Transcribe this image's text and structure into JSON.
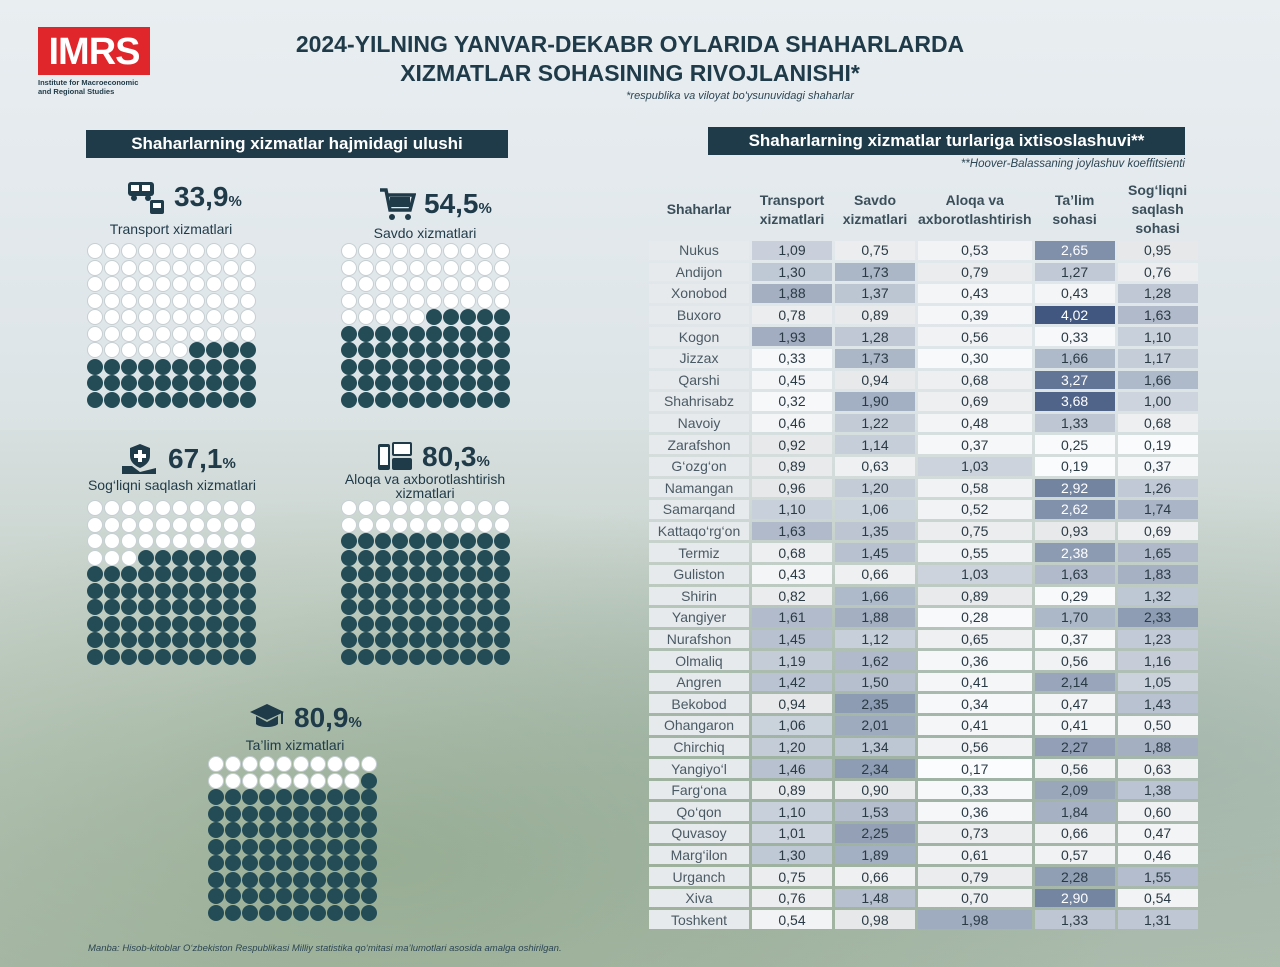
{
  "logo": {
    "text": "IMRS",
    "subtitle": "Institute for Macroeconomic and Regional Studies"
  },
  "title": {
    "line1": "2024-YILNING YANVAR-DEKABR OYLARIDA SHAHARLARDA",
    "line2": "XIZMATLAR SOHASINING RIVOJLANISHI*"
  },
  "title_note": "*respublika va viloyat bo'ysunuvidagi shaharlar",
  "left_banner": "Shaharlarning xizmatlar hajmidagi ulushi",
  "right_banner": "Shaharlarning xizmatlar turlariga ixtisoslashuvi**",
  "right_note": "**Hoover-Balassaning joylashuv koeffitsienti",
  "shares": [
    {
      "icon": "transport-icon",
      "value": "33,9",
      "unit": "%",
      "label": "Transport xizmatlari",
      "fraction": 0.339
    },
    {
      "icon": "cart-icon",
      "value": "54,5",
      "unit": "%",
      "label": "Savdo xizmatlari",
      "fraction": 0.545
    },
    {
      "icon": "healthcare-icon",
      "value": "67,1",
      "unit": "%",
      "label": "Sog‘liqni saqlash xizmatlari",
      "fraction": 0.671
    },
    {
      "icon": "communication-icon",
      "value": "80,3",
      "unit": "%",
      "label": "Aloqa va axborotlashtirish xizmatlari",
      "fraction": 0.803
    },
    {
      "icon": "graduation-cap-icon",
      "value": "80,9",
      "unit": "%",
      "label": "Ta’lim xizmatlari",
      "fraction": 0.809
    }
  ],
  "table": {
    "headers": [
      "Shaharlar",
      "Transport xizmatlari",
      "Savdo xizmatlari",
      "Aloqa va axborotlashtirish",
      "Ta’lim sohasi",
      "Sog‘liqni saqlash sohasi"
    ],
    "rows": [
      [
        "Nukus",
        "1,09",
        "0,75",
        "0,53",
        "2,65",
        "0,95"
      ],
      [
        "Andijon",
        "1,30",
        "1,73",
        "0,79",
        "1,27",
        "0,76"
      ],
      [
        "Xonobod",
        "1,88",
        "1,37",
        "0,43",
        "0,43",
        "1,28"
      ],
      [
        "Buxoro",
        "0,78",
        "0,89",
        "0,39",
        "4,02",
        "1,63"
      ],
      [
        "Kogon",
        "1,93",
        "1,28",
        "0,56",
        "0,33",
        "1,10"
      ],
      [
        "Jizzax",
        "0,33",
        "1,73",
        "0,30",
        "1,66",
        "1,17"
      ],
      [
        "Qarshi",
        "0,45",
        "0,94",
        "0,68",
        "3,27",
        "1,66"
      ],
      [
        "Shahrisabz",
        "0,32",
        "1,90",
        "0,69",
        "3,68",
        "1,00"
      ],
      [
        "Navoiy",
        "0,46",
        "1,22",
        "0,48",
        "1,33",
        "0,68"
      ],
      [
        "Zarafshon",
        "0,92",
        "1,14",
        "0,37",
        "0,25",
        "0,19"
      ],
      [
        "G‘ozg‘on",
        "0,89",
        "0,63",
        "1,03",
        "0,19",
        "0,37"
      ],
      [
        "Namangan",
        "0,96",
        "1,20",
        "0,58",
        "2,92",
        "1,26"
      ],
      [
        "Samarqand",
        "1,10",
        "1,06",
        "0,52",
        "2,62",
        "1,74"
      ],
      [
        "Kattaqo‘rg‘on",
        "1,63",
        "1,35",
        "0,75",
        "0,93",
        "0,69"
      ],
      [
        "Termiz",
        "0,68",
        "1,45",
        "0,55",
        "2,38",
        "1,65"
      ],
      [
        "Guliston",
        "0,43",
        "0,66",
        "1,03",
        "1,63",
        "1,83"
      ],
      [
        "Shirin",
        "0,82",
        "1,66",
        "0,89",
        "0,29",
        "1,32"
      ],
      [
        "Yangiyer",
        "1,61",
        "1,88",
        "0,28",
        "1,70",
        "2,33"
      ],
      [
        "Nurafshon",
        "1,45",
        "1,12",
        "0,65",
        "0,37",
        "1,23"
      ],
      [
        "Olmaliq",
        "1,19",
        "1,62",
        "0,36",
        "0,56",
        "1,16"
      ],
      [
        "Angren",
        "1,42",
        "1,50",
        "0,41",
        "2,14",
        "1,05"
      ],
      [
        "Bekobod",
        "0,94",
        "2,35",
        "0,34",
        "0,47",
        "1,43"
      ],
      [
        "Ohangaron",
        "1,06",
        "2,01",
        "0,41",
        "0,41",
        "0,50"
      ],
      [
        "Chirchiq",
        "1,20",
        "1,34",
        "0,56",
        "2,27",
        "1,88"
      ],
      [
        "Yangiyo‘l",
        "1,46",
        "2,34",
        "0,17",
        "0,56",
        "0,63"
      ],
      [
        "Farg‘ona",
        "0,89",
        "0,90",
        "0,33",
        "2,09",
        "1,38"
      ],
      [
        "Qo‘qon",
        "1,10",
        "1,53",
        "0,36",
        "1,84",
        "0,60"
      ],
      [
        "Quvasoy",
        "1,01",
        "2,25",
        "0,73",
        "0,66",
        "0,47"
      ],
      [
        "Marg‘ilon",
        "1,30",
        "1,89",
        "0,61",
        "0,57",
        "0,46"
      ],
      [
        "Urganch",
        "0,75",
        "0,66",
        "0,79",
        "2,28",
        "1,55"
      ],
      [
        "Xiva",
        "0,76",
        "1,48",
        "0,70",
        "2,90",
        "0,54"
      ],
      [
        "Toshkent",
        "0,54",
        "0,98",
        "1,98",
        "1,33",
        "1,31"
      ]
    ]
  },
  "footer": "Manba: Hisob-kitoblar O‘zbekiston Respublikasi Milliy statistika qo‘mitasi ma’lumotlari asosida amalga oshirilgan.",
  "colors": {
    "dark": "#1f3a48",
    "dot_fill": "#244c57",
    "logo_red": "#e0262b"
  }
}
